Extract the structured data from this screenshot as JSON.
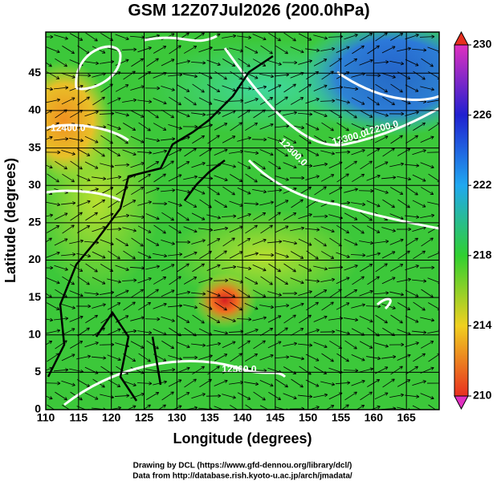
{
  "chart_data": {
    "type": "map",
    "title": "GSM 12Z07Jul2026 (200.0hPa)",
    "xlabel": "Longitude (degrees)",
    "ylabel": "Latitude  (degrees)",
    "xlim": [
      110,
      170
    ],
    "ylim": [
      0,
      50.5
    ],
    "xticks": [
      110,
      115,
      120,
      125,
      130,
      135,
      140,
      145,
      150,
      155,
      160,
      165
    ],
    "yticks": [
      0,
      5,
      10,
      15,
      20,
      25,
      30,
      35,
      40,
      45
    ],
    "grid": true,
    "colorbar": {
      "lim": [
        210,
        230
      ],
      "ticks": [
        230,
        226,
        222,
        218,
        214,
        210
      ],
      "colors": [
        "#e030c0",
        "#2020d0",
        "#20a8f0",
        "#30d030",
        "#f0d020",
        "#e83020"
      ]
    },
    "annotations": [
      {
        "text": "12400.0",
        "x": 113.4,
        "y": 37.6,
        "angle": 0
      },
      {
        "text": "12300.0",
        "x": 156.3,
        "y": 36.3,
        "angle": -15
      },
      {
        "text": "12200.0",
        "x": 161.2,
        "y": 37.6,
        "angle": -15
      },
      {
        "text": "12300.0",
        "x": 147.7,
        "y": 34.4,
        "angle": 45
      },
      {
        "text": "12500.0",
        "x": 139.5,
        "y": 5.3,
        "angle": 0
      }
    ],
    "credits": [
      "Drawing by DCL (https://www.gfd-dennou.org/library/dcl/)",
      "Data from http://database.rish.kyoto-u.ac.jp/arch/jmadata/"
    ]
  }
}
